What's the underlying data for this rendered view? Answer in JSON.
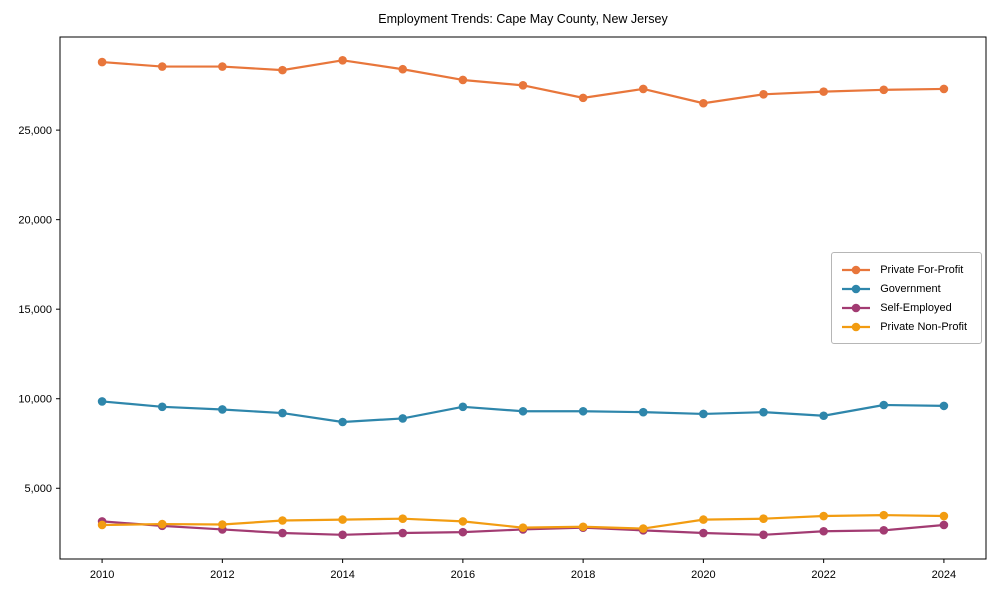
{
  "figure": {
    "background": "#ffffff",
    "axis_color": "#000000",
    "tick_label_color": "#000000"
  },
  "chart_data": {
    "type": "line",
    "title": "Employment Trends: Cape May County, New Jersey",
    "xlabel": "",
    "ylabel": "",
    "grid": false,
    "legend_position": "center right",
    "marker": "circle",
    "marker_radius": 4.3,
    "line_width": 2.2,
    "x": [
      2010,
      2011,
      2012,
      2013,
      2014,
      2015,
      2016,
      2017,
      2018,
      2019,
      2020,
      2021,
      2022,
      2023,
      2024
    ],
    "xlim": [
      2009.3,
      2024.7
    ],
    "ylim": [
      1050,
      30200
    ],
    "xticks": {
      "values": [
        2010,
        2012,
        2014,
        2016,
        2018,
        2020,
        2022,
        2024
      ],
      "labels": [
        "2010",
        "2012",
        "2014",
        "2016",
        "2018",
        "2020",
        "2022",
        "2024"
      ]
    },
    "yticks": {
      "values": [
        5000,
        10000,
        15000,
        20000,
        25000
      ],
      "labels": [
        "5,000",
        "10,000",
        "15,000",
        "20,000",
        "25,000"
      ]
    },
    "series": [
      {
        "name": "Private For-Profit",
        "color": "#E8763B",
        "values": [
          28800,
          28550,
          28550,
          28350,
          28900,
          28400,
          27800,
          27500,
          26800,
          27300,
          26500,
          27000,
          27150,
          27250,
          27300
        ]
      },
      {
        "name": "Government",
        "color": "#2E86AB",
        "values": [
          9850,
          9550,
          9400,
          9200,
          8700,
          8900,
          9550,
          9300,
          9300,
          9250,
          9150,
          9250,
          9050,
          9650,
          9600
        ]
      },
      {
        "name": "Self-Employed",
        "color": "#A23B72",
        "values": [
          3150,
          2900,
          2700,
          2500,
          2400,
          2500,
          2550,
          2700,
          2800,
          2650,
          2500,
          2400,
          2600,
          2650,
          2950
        ]
      },
      {
        "name": "Private Non-Profit",
        "color": "#F29C11",
        "values": [
          2950,
          3000,
          2975,
          3200,
          3250,
          3300,
          3150,
          2800,
          2850,
          2750,
          3250,
          3300,
          3450,
          3500,
          3450
        ]
      }
    ]
  }
}
